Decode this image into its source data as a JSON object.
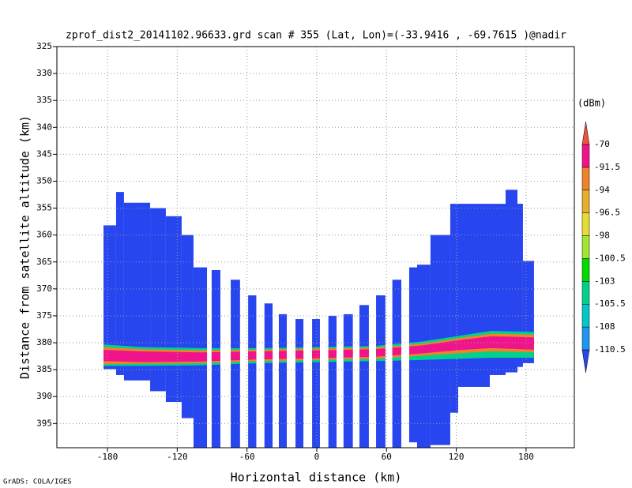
{
  "chart_data": {
    "type": "profile",
    "title": "zprof_dist2_20141102.96633.grd  scan # 355  (Lat, Lon)=(-33.9416 , -69.7615 )@nadir",
    "x_label": "Horizontal distance (km)",
    "y_label": "Distance from satellite altitude (km)",
    "footer": "GrADS: COLA/IGES",
    "xlim": [
      -223.5,
      221.5
    ],
    "xticks": [
      -180,
      -120,
      -60,
      0,
      60,
      120,
      180
    ],
    "ylim": [
      325,
      399.5
    ],
    "yticks": [
      325,
      330,
      335,
      340,
      345,
      350,
      355,
      360,
      365,
      370,
      375,
      380,
      385,
      390,
      395
    ],
    "y_inverted": true,
    "grid": true,
    "swath_color": "#2846f0",
    "swaths": [
      {
        "x0": -183.4,
        "x1": -172.6,
        "top": 358.2,
        "bottom": 384.9
      },
      {
        "x0": -172.6,
        "x1": -165.8,
        "top": 352,
        "bottom": 386
      },
      {
        "x0": -165.8,
        "x1": -143.3,
        "top": 354,
        "bottom": 387
      },
      {
        "x0": -143.3,
        "x1": -129.8,
        "top": 355,
        "bottom": 389
      },
      {
        "x0": -129.8,
        "x1": -116.2,
        "top": 356.5,
        "bottom": 391
      },
      {
        "x0": -116.2,
        "x1": -106,
        "top": 360,
        "bottom": 394
      },
      {
        "x0": -106,
        "x1": -94.4,
        "top": 366,
        "bottom": 399.5
      },
      {
        "x0": -90.4,
        "x1": -82.9,
        "top": 366.5,
        "bottom": 399.5
      },
      {
        "x0": -74,
        "x1": -66,
        "top": 368.3,
        "bottom": 399.5
      },
      {
        "x0": -59,
        "x1": -52,
        "top": 371.2,
        "bottom": 399.5
      },
      {
        "x0": -45,
        "x1": -38,
        "top": 372.7,
        "bottom": 399.5
      },
      {
        "x0": -32.6,
        "x1": -25.8,
        "top": 374.7,
        "bottom": 399.5
      },
      {
        "x0": -18.3,
        "x1": -11.5,
        "top": 375.6,
        "bottom": 399.5
      },
      {
        "x0": -4,
        "x1": 2.7,
        "top": 375.6,
        "bottom": 399.5
      },
      {
        "x0": 10,
        "x1": 17,
        "top": 375,
        "bottom": 399.5
      },
      {
        "x0": 23,
        "x1": 31,
        "top": 374.7,
        "bottom": 399.5
      },
      {
        "x0": 36.7,
        "x1": 44.8,
        "top": 373,
        "bottom": 399.5
      },
      {
        "x0": 51,
        "x1": 59,
        "top": 371.2,
        "bottom": 399.5
      },
      {
        "x0": 65,
        "x1": 72.7,
        "top": 368.3,
        "bottom": 399.5
      },
      {
        "x0": 79.5,
        "x1": 86.3,
        "top": 366,
        "bottom": 398.5
      },
      {
        "x0": 86.3,
        "x1": 97.8,
        "top": 365.5,
        "bottom": 399.5
      },
      {
        "x0": 97.8,
        "x1": 114.8,
        "top": 360,
        "bottom": 399
      },
      {
        "x0": 114.8,
        "x1": 121.6,
        "top": 354.2,
        "bottom": 393
      },
      {
        "x0": 121.6,
        "x1": 148.8,
        "top": 354.2,
        "bottom": 388.2
      },
      {
        "x0": 148.8,
        "x1": 162.4,
        "top": 354.2,
        "bottom": 386
      },
      {
        "x0": 162.4,
        "x1": 172.6,
        "top": 351.6,
        "bottom": 385.5
      },
      {
        "x0": 172.6,
        "x1": 177.3,
        "top": 354.2,
        "bottom": 384.5
      },
      {
        "x0": 177.3,
        "x1": 186.8,
        "top": 364.8,
        "bottom": 383.8
      }
    ],
    "layers": [
      {
        "color": "#00d28c",
        "x": [
          -185,
          -150,
          -100,
          -50,
          0,
          50,
          90,
          120,
          150,
          187
        ],
        "top": [
          380.3,
          380.8,
          381,
          381,
          380.8,
          380.6,
          379.8,
          378.8,
          377.8,
          378
        ],
        "bottom": [
          384.3,
          384.3,
          384.2,
          383.8,
          383.6,
          383.4,
          383.2,
          383,
          382.8,
          382.8
        ]
      },
      {
        "color": "#f08228",
        "x": [
          -185,
          -150,
          -100,
          -50,
          0,
          50,
          90,
          120,
          150,
          187
        ],
        "top": [
          380.8,
          381.2,
          381.4,
          381.3,
          381.1,
          380.9,
          380.2,
          379.2,
          378.3,
          378.5
        ],
        "bottom": [
          384,
          383.9,
          383.8,
          383.4,
          383.2,
          383,
          382.4,
          382,
          381.6,
          381.8
        ]
      },
      {
        "color": "#f0148c",
        "x": [
          -185,
          -150,
          -100,
          -50,
          0,
          50,
          90,
          120,
          150,
          187
        ],
        "top": [
          381.3,
          381.6,
          381.8,
          381.6,
          381.4,
          381.2,
          380.5,
          379.6,
          378.8,
          379
        ],
        "bottom": [
          383.4,
          383.6,
          383.5,
          383.1,
          382.9,
          382.6,
          382,
          381.4,
          381,
          381.3
        ]
      }
    ],
    "colorbar": {
      "unit": "(dBm)",
      "levels": [
        -110.5,
        -108,
        -105.5,
        -103,
        -100.5,
        -98,
        -96.5,
        -94,
        -91.5,
        -70
      ],
      "colors": [
        "#2846f0",
        "#1e96f0",
        "#00c8c8",
        "#00d28c",
        "#00dc00",
        "#a0e632",
        "#e6dc32",
        "#e6af2d",
        "#f08228",
        "#f0148c",
        "#f0503c"
      ]
    }
  }
}
